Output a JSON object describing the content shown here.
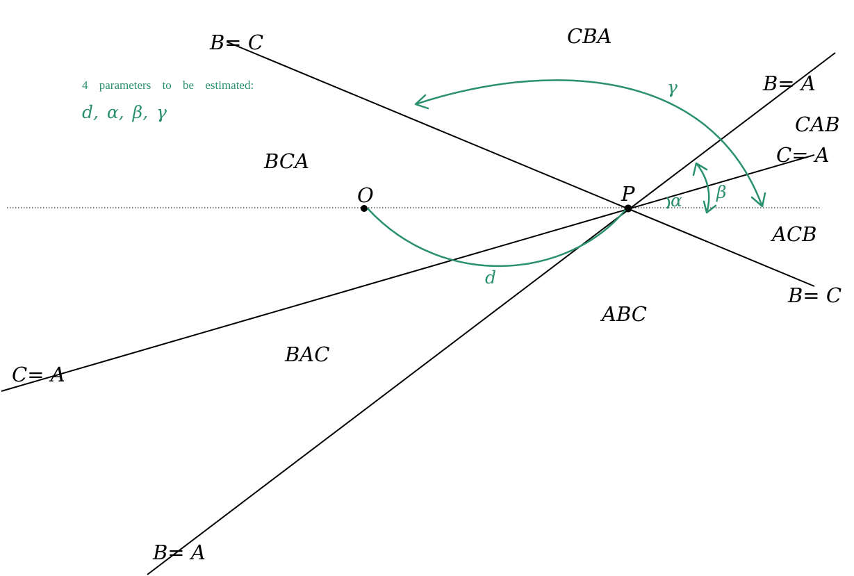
{
  "diagram": {
    "regions": {
      "cba": "CBA",
      "cab": "CAB",
      "bca": "BCA",
      "acb": "ACB",
      "abc": "ABC",
      "bac": "BAC"
    },
    "line_labels": {
      "bc_top": "B= C",
      "bc_bottom": "B= C",
      "ba_top": "B= A",
      "ba_bottom": "B= A",
      "ca_right": "C= A",
      "ca_left": "C= A"
    },
    "points": {
      "o": "O",
      "p": "P"
    },
    "annotations": {
      "parameters_heading": "4 parameters to be estimated:",
      "parameters_list": "d, α, β, γ",
      "d": "d",
      "alpha": "α",
      "beta": "β",
      "gamma": "γ"
    },
    "colors": {
      "annotation": "#2a9070",
      "lines": "#000000"
    }
  }
}
